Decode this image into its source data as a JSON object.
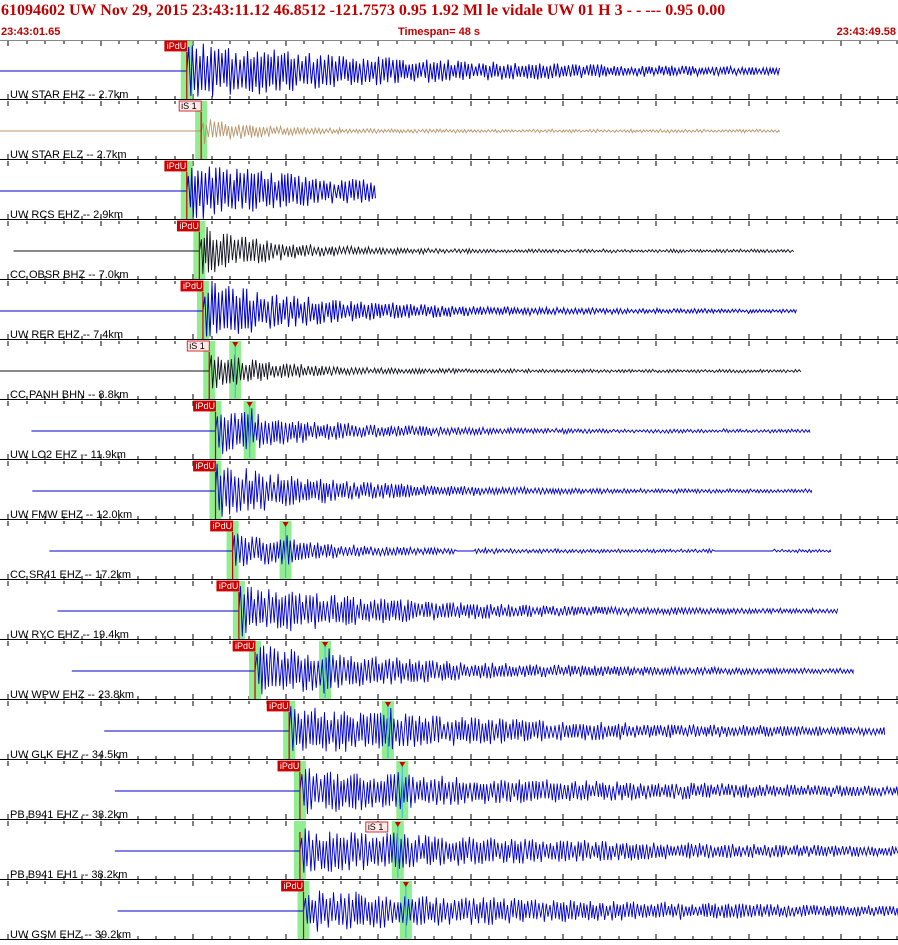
{
  "header": {
    "title": "61094602 UW Nov 29, 2015 23:43:11.12    46.8512 -121.7573  0.95 1.92 Ml le    vidale   UW 01 H    3  -  - ---  0.95 0.00",
    "start_time": "23:43:01.65",
    "timespan": "Timespan=  48 s",
    "end_time": "23:43:49.58"
  },
  "colors": {
    "trace_blue": "#0000cc",
    "trace_brown": "#b8956a",
    "trace_black": "#101020",
    "pick_red": "#cc0000",
    "window_green": "#90ee90",
    "window_cyan": "#40c0e0"
  },
  "traces": [
    {
      "label": "UW STAR EHZ -- 2.7km",
      "color": "blue",
      "pre_start": 0.0,
      "onset": 0.208,
      "end": 0.868,
      "amp": 1.0,
      "decay": 0.4,
      "clip": true,
      "p_label": "iPdU",
      "s_pick": null,
      "s_label": "",
      "gaps": []
    },
    {
      "label": "UW STAR ELZ -- 2.7km",
      "color": "brown",
      "pre_start": 0.0,
      "onset": 0.224,
      "end": 0.868,
      "amp": 0.45,
      "decay": 0.1,
      "clip": false,
      "p_label": "iS 1",
      "s_pick": null,
      "s_label": "",
      "gaps": []
    },
    {
      "label": "UW RCS EHZ -- 2.9km",
      "color": "blue",
      "pre_start": 0.0,
      "onset": 0.208,
      "end": 0.418,
      "amp": 1.0,
      "decay": 0.9,
      "clip": true,
      "p_label": "iPdU",
      "s_pick": null,
      "s_label": "",
      "gaps": []
    },
    {
      "label": "CC OBSR BHZ -- 7.0km",
      "color": "black",
      "pre_start": 0.015,
      "onset": 0.222,
      "end": 0.884,
      "amp": 0.85,
      "decay": 0.12,
      "clip": false,
      "p_label": "iPdU",
      "s_pick": null,
      "s_label": "",
      "gaps": []
    },
    {
      "label": "UW RER EHZ -- 7.4km",
      "color": "blue",
      "pre_start": 0.0,
      "onset": 0.226,
      "end": 0.887,
      "amp": 1.0,
      "decay": 0.22,
      "clip": true,
      "p_label": "iPdU",
      "s_pick": null,
      "s_label": "",
      "gaps": []
    },
    {
      "label": "CC PANH BHN -- 8.8km",
      "color": "black",
      "pre_start": 0.0,
      "onset": 0.233,
      "end": 0.892,
      "amp": 0.65,
      "decay": 0.12,
      "clip": false,
      "p_label": "iS 1",
      "s_pick": 0.262,
      "s_label": "",
      "gaps": []
    },
    {
      "label": "UW LO2 EHZ -- 11.9km",
      "color": "blue",
      "pre_start": 0.035,
      "onset": 0.24,
      "end": 0.902,
      "amp": 0.8,
      "decay": 0.18,
      "clip": false,
      "p_label": "iPdU",
      "s_pick": 0.278,
      "s_label": "",
      "gaps": []
    },
    {
      "label": "UW FMW EHZ -- 12.0km",
      "color": "blue",
      "pre_start": 0.036,
      "onset": 0.24,
      "end": 0.904,
      "amp": 0.95,
      "decay": 0.2,
      "clip": false,
      "p_label": "iPdU",
      "s_pick": null,
      "s_label": "",
      "gaps": []
    },
    {
      "label": "CC SR41 EHZ -- 17.2km",
      "color": "blue",
      "pre_start": 0.055,
      "onset": 0.259,
      "end": 0.925,
      "amp": 0.6,
      "decay": 0.15,
      "clip": false,
      "p_label": "iPdU",
      "s_pick": 0.318,
      "s_label": "",
      "gaps": [
        [
          0.508,
          0.528
        ],
        [
          0.795,
          0.862
        ]
      ]
    },
    {
      "label": "UW RYC EHZ -- 19.4km",
      "color": "blue",
      "pre_start": 0.064,
      "onset": 0.266,
      "end": 0.933,
      "amp": 0.9,
      "decay": 0.28,
      "clip": false,
      "p_label": "iPdU",
      "s_pick": null,
      "s_label": "",
      "gaps": []
    },
    {
      "label": "UW WPW EHZ -- 23.8km",
      "color": "blue",
      "pre_start": 0.08,
      "onset": 0.284,
      "end": 0.95,
      "amp": 0.9,
      "decay": 0.3,
      "clip": false,
      "p_label": "iPdU",
      "s_pick": 0.362,
      "s_label": "",
      "gaps": []
    },
    {
      "label": "UW GLK EHZ -- 34.5km",
      "color": "blue",
      "pre_start": 0.116,
      "onset": 0.322,
      "end": 0.985,
      "amp": 0.85,
      "decay": 0.45,
      "clip": false,
      "p_label": "iPdU",
      "s_pick": 0.432,
      "s_label": "",
      "gaps": []
    },
    {
      "label": "PB B941 EHZ -- 38.2km",
      "color": "blue",
      "pre_start": 0.128,
      "onset": 0.334,
      "end": 1.0,
      "amp": 0.75,
      "decay": 0.55,
      "clip": false,
      "p_label": "iPdU",
      "s_pick": 0.448,
      "s_label": "",
      "gaps": []
    },
    {
      "label": "PB B941 EH1 -- 38.2km",
      "color": "blue",
      "pre_start": 0.128,
      "onset": 0.334,
      "end": 1.0,
      "amp": 0.75,
      "decay": 0.55,
      "clip": false,
      "p_label": "",
      "s_pick": 0.443,
      "s_label": "iS 1",
      "gaps": []
    },
    {
      "label": "UW GSM EHZ -- 39.2km",
      "color": "blue",
      "pre_start": 0.131,
      "onset": 0.338,
      "end": 1.0,
      "amp": 0.7,
      "decay": 0.6,
      "clip": false,
      "p_label": "iPdU",
      "s_pick": 0.452,
      "s_label": "",
      "gaps": []
    }
  ]
}
